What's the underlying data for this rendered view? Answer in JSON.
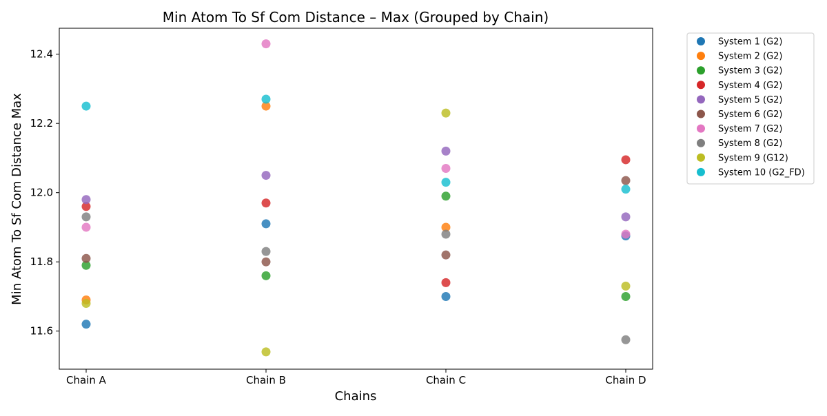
{
  "chart_data": {
    "type": "scatter",
    "title": "Min Atom To Sf Com Distance – Max (Grouped by Chain)",
    "xlabel": "Chains",
    "ylabel": "Min Atom To Sf Com Distance Max",
    "categories": [
      "Chain A",
      "Chain B",
      "Chain C",
      "Chain D"
    ],
    "ylim": [
      11.49,
      12.475
    ],
    "yticks": [
      11.6,
      11.8,
      12.0,
      12.2,
      12.4
    ],
    "ytick_labels": [
      "11.6",
      "11.8",
      "12.0",
      "12.2",
      "12.4"
    ],
    "grid": false,
    "legend_position": "outside-right",
    "series": [
      {
        "name": "System 1 (G2)",
        "color": "#1f77b4",
        "values": [
          11.62,
          11.91,
          11.7,
          11.875
        ]
      },
      {
        "name": "System 2 (G2)",
        "color": "#ff7f0e",
        "values": [
          11.69,
          12.25,
          11.9,
          null
        ]
      },
      {
        "name": "System 3 (G2)",
        "color": "#2ca02c",
        "values": [
          11.79,
          11.76,
          11.99,
          11.7
        ]
      },
      {
        "name": "System 4 (G2)",
        "color": "#d62728",
        "values": [
          11.96,
          11.97,
          11.74,
          12.095
        ]
      },
      {
        "name": "System 5 (G2)",
        "color": "#9467bd",
        "values": [
          11.98,
          12.05,
          12.12,
          11.93
        ]
      },
      {
        "name": "System 6 (G2)",
        "color": "#8c564b",
        "values": [
          11.81,
          11.8,
          11.82,
          12.035
        ]
      },
      {
        "name": "System 7 (G2)",
        "color": "#e377c2",
        "values": [
          11.9,
          12.43,
          12.07,
          11.88
        ]
      },
      {
        "name": "System 8 (G2)",
        "color": "#7f7f7f",
        "values": [
          11.93,
          11.83,
          11.88,
          11.575
        ]
      },
      {
        "name": "System 9 (G12)",
        "color": "#bcbd22",
        "values": [
          11.68,
          11.54,
          12.23,
          11.73
        ]
      },
      {
        "name": "System 10 (G2_FD)",
        "color": "#17becf",
        "values": [
          12.25,
          12.27,
          12.03,
          12.01
        ]
      }
    ]
  }
}
